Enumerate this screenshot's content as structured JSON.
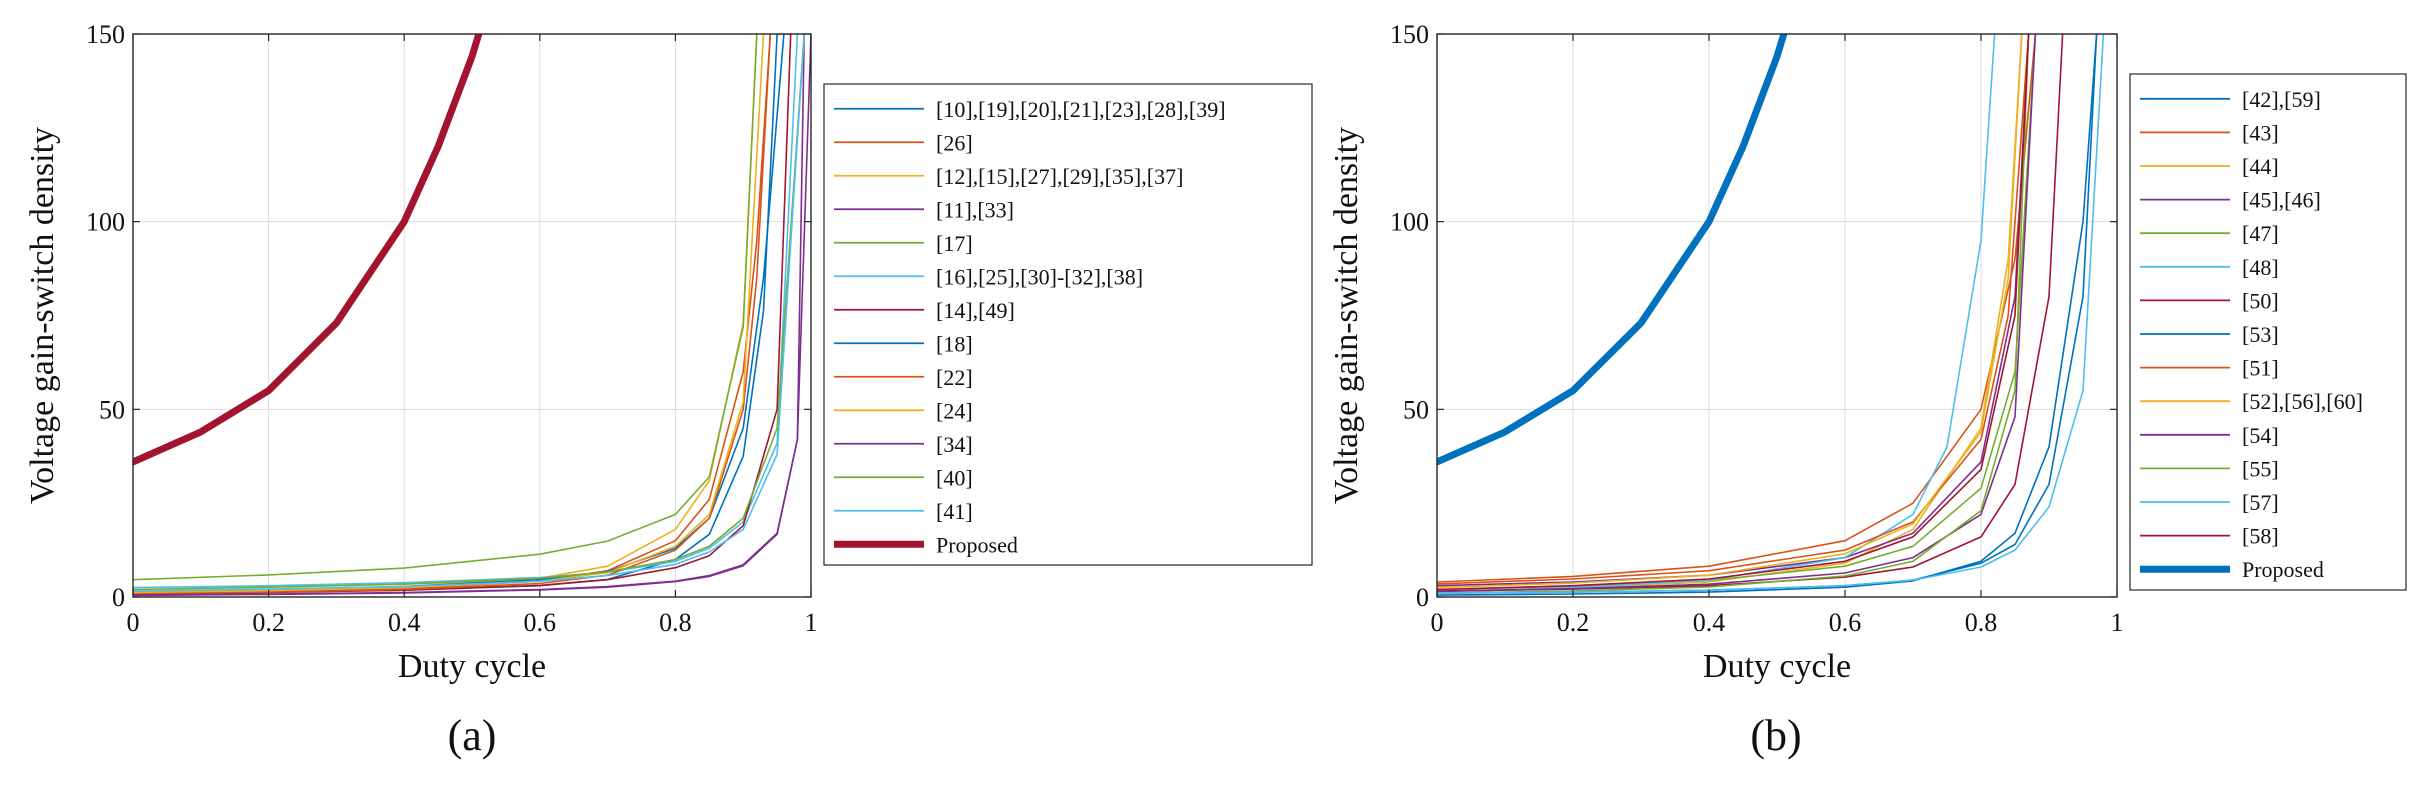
{
  "figure": {
    "panels": [
      {
        "id": "a",
        "caption": "(a)"
      },
      {
        "id": "b",
        "caption": "(b)"
      }
    ]
  },
  "chart_data": [
    {
      "type": "line",
      "caption": "(a)",
      "xlabel": "Duty cycle",
      "ylabel": "Voltage gain-switch density",
      "xlim": [
        0,
        1
      ],
      "ylim": [
        0,
        150
      ],
      "xticks": [
        "0",
        "0.2",
        "0.4",
        "0.6",
        "0.8",
        "1"
      ],
      "yticks": [
        "0",
        "50",
        "100",
        "150"
      ],
      "grid": true,
      "legend_position": "right-outside",
      "series": [
        {
          "name": "[10],[19],[20],[21],[23],[28],[39]",
          "color": "#0072bd",
          "x": [
            0,
            0.2,
            0.4,
            0.6,
            0.7,
            0.8,
            0.85,
            0.9,
            0.93,
            0.95,
            0.97
          ],
          "y": [
            1.1,
            1.4,
            1.8,
            3.0,
            4.7,
            10.0,
            16.7,
            37.5,
            76.2,
            150.0,
            150.0
          ]
        },
        {
          "name": "[26]",
          "color": "#d95319",
          "x": [
            0,
            0.2,
            0.4,
            0.6,
            0.7,
            0.8,
            0.85,
            0.9,
            0.92,
            0.94
          ],
          "y": [
            1.0,
            1.5,
            2.3,
            4.2,
            7.0,
            15.0,
            26.0,
            60.0,
            95.0,
            150.0
          ]
        },
        {
          "name": "[12],[15],[27],[29],[35],[37]",
          "color": "#edb120",
          "x": [
            0,
            0.2,
            0.4,
            0.6,
            0.7,
            0.8,
            0.85,
            0.9,
            0.92
          ],
          "y": [
            1.2,
            1.8,
            2.8,
            5.0,
            8.2,
            18.0,
            31.0,
            73.0,
            150.0
          ]
        },
        {
          "name": "[11],[33]",
          "color": "#7e2f8e",
          "x": [
            0,
            0.2,
            0.4,
            0.6,
            0.7,
            0.8,
            0.85,
            0.9,
            0.95,
            0.98,
            0.99
          ],
          "y": [
            0.4,
            0.7,
            1.1,
            1.9,
            2.6,
            4.1,
            5.5,
            8.3,
            16.7,
            42.0,
            150.0
          ]
        },
        {
          "name": "[17]",
          "color": "#77ac30",
          "x": [
            0,
            0.2,
            0.4,
            0.6,
            0.7,
            0.8,
            0.85,
            0.9,
            0.92
          ],
          "y": [
            4.6,
            5.9,
            7.7,
            11.4,
            14.9,
            22.0,
            32.0,
            72.0,
            150.0
          ]
        },
        {
          "name": "[16],[25],[30]-[32],[38]",
          "color": "#4dbeee",
          "x": [
            0,
            0.2,
            0.4,
            0.6,
            0.7,
            0.8,
            0.85,
            0.9,
            0.95,
            0.98
          ],
          "y": [
            2.5,
            3.0,
            3.8,
            5.2,
            6.6,
            9.5,
            13.0,
            20.0,
            41.0,
            150.0
          ]
        },
        {
          "name": "[14],[49]",
          "color": "#a2142f",
          "x": [
            0,
            0.2,
            0.4,
            0.6,
            0.7,
            0.8,
            0.85,
            0.9,
            0.95,
            0.97
          ],
          "y": [
            0.8,
            1.2,
            1.8,
            3.1,
            4.6,
            7.8,
            11.0,
            19.0,
            50.0,
            150.0
          ]
        },
        {
          "name": "[18]",
          "color": "#0072bd",
          "x": [
            0,
            0.2,
            0.4,
            0.6,
            0.7,
            0.8,
            0.85,
            0.9,
            0.93,
            0.96
          ],
          "y": [
            1.5,
            2.0,
            2.8,
            4.6,
            6.8,
            13.0,
            21.0,
            45.0,
            85.0,
            150.0
          ]
        },
        {
          "name": "[22]",
          "color": "#d95319",
          "x": [
            0,
            0.2,
            0.4,
            0.6,
            0.7,
            0.8,
            0.85,
            0.9,
            0.92,
            0.94
          ],
          "y": [
            0.9,
            1.3,
            2.0,
            3.6,
            5.8,
            12.5,
            21.0,
            50.0,
            85.0,
            150.0
          ]
        },
        {
          "name": "[24]",
          "color": "#edb120",
          "x": [
            0,
            0.2,
            0.4,
            0.6,
            0.7,
            0.8,
            0.85,
            0.9,
            0.93
          ],
          "y": [
            1.2,
            1.7,
            2.5,
            4.2,
            6.5,
            13.5,
            22.0,
            52.0,
            150.0
          ]
        },
        {
          "name": "[34]",
          "color": "#7e2f8e",
          "x": [
            0,
            0.2,
            0.4,
            0.6,
            0.7,
            0.8,
            0.85,
            0.9,
            0.95,
            0.98,
            1.0
          ],
          "y": [
            0.5,
            0.8,
            1.2,
            2.0,
            2.8,
            4.2,
            5.7,
            8.6,
            17.0,
            42.0,
            150.0
          ]
        },
        {
          "name": "[40]",
          "color": "#77ac30",
          "x": [
            0,
            0.2,
            0.4,
            0.6,
            0.7,
            0.8,
            0.85,
            0.9,
            0.95,
            0.99
          ],
          "y": [
            2.0,
            2.6,
            3.4,
            5.0,
            6.7,
            10.0,
            13.5,
            21.0,
            45.0,
            150.0
          ]
        },
        {
          "name": "[41]",
          "color": "#4dbeee",
          "x": [
            0,
            0.2,
            0.4,
            0.6,
            0.7,
            0.8,
            0.85,
            0.9,
            0.95,
            0.99
          ],
          "y": [
            1.6,
            2.1,
            2.8,
            4.2,
            5.7,
            8.7,
            12.0,
            18.0,
            38.0,
            150.0
          ]
        },
        {
          "name": "Proposed",
          "color": "#a2142f",
          "thick": true,
          "x": [
            0,
            0.1,
            0.2,
            0.3,
            0.4,
            0.45,
            0.5,
            0.51
          ],
          "y": [
            36.0,
            44.0,
            55.0,
            73.0,
            100.0,
            120.0,
            144.0,
            150.0
          ]
        }
      ]
    },
    {
      "type": "line",
      "caption": "(b)",
      "xlabel": "Duty cycle",
      "ylabel": "Voltage gain-switch density",
      "xlim": [
        0,
        1
      ],
      "ylim": [
        0,
        150
      ],
      "xticks": [
        "0",
        "0.2",
        "0.4",
        "0.6",
        "0.8",
        "1"
      ],
      "yticks": [
        "0",
        "50",
        "100",
        "150"
      ],
      "grid": true,
      "legend_position": "right-outside",
      "series": [
        {
          "name": "[42],[59]",
          "color": "#0072bd",
          "x": [
            0,
            0.2,
            0.4,
            0.6,
            0.7,
            0.8,
            0.85,
            0.9,
            0.95,
            0.97
          ],
          "y": [
            1.0,
            1.3,
            1.8,
            3.0,
            4.5,
            9.0,
            14.0,
            30.0,
            80.0,
            150.0
          ]
        },
        {
          "name": "[43]",
          "color": "#d95319",
          "x": [
            0,
            0.2,
            0.4,
            0.6,
            0.7,
            0.8,
            0.85,
            0.88
          ],
          "y": [
            4.0,
            5.5,
            8.2,
            15.0,
            25.0,
            50.0,
            90.0,
            150.0
          ]
        },
        {
          "name": "[44]",
          "color": "#edb120",
          "x": [
            0,
            0.2,
            0.4,
            0.6,
            0.7,
            0.8,
            0.84,
            0.86
          ],
          "y": [
            1.5,
            2.4,
            4.0,
            9.0,
            18.0,
            45.0,
            90.0,
            150.0
          ]
        },
        {
          "name": "[45],[46]",
          "color": "#7e2f8e",
          "x": [
            0,
            0.2,
            0.4,
            0.6,
            0.7,
            0.8,
            0.85,
            0.87
          ],
          "y": [
            3.0,
            4.0,
            5.8,
            10.5,
            17.0,
            36.0,
            80.0,
            150.0
          ]
        },
        {
          "name": "[47]",
          "color": "#77ac30",
          "x": [
            0,
            0.2,
            0.4,
            0.6,
            0.7,
            0.8,
            0.85,
            0.88
          ],
          "y": [
            2.0,
            2.9,
            4.4,
            8.2,
            13.5,
            29.0,
            60.0,
            150.0
          ]
        },
        {
          "name": "[48]",
          "color": "#4dbeee",
          "x": [
            0,
            0.2,
            0.4,
            0.6,
            0.7,
            0.75,
            0.8,
            0.82
          ],
          "y": [
            1.5,
            2.5,
            4.5,
            10.5,
            22.0,
            40.0,
            95.0,
            150.0
          ]
        },
        {
          "name": "[50]",
          "color": "#a2142f",
          "x": [
            0,
            0.2,
            0.4,
            0.6,
            0.7,
            0.8,
            0.85,
            0.9,
            0.92
          ],
          "y": [
            1.6,
            2.1,
            3.0,
            5.3,
            8.0,
            16.0,
            30.0,
            80.0,
            150.0
          ]
        },
        {
          "name": "[53]",
          "color": "#0072bd",
          "x": [
            0,
            0.2,
            0.4,
            0.6,
            0.7,
            0.8,
            0.85,
            0.9,
            0.95,
            0.97
          ],
          "y": [
            0.5,
            0.8,
            1.3,
            2.6,
            4.3,
            9.5,
            17.0,
            40.0,
            100.0,
            150.0
          ]
        },
        {
          "name": "[51]",
          "color": "#d95319",
          "x": [
            0,
            0.2,
            0.4,
            0.6,
            0.7,
            0.8,
            0.84,
            0.87
          ],
          "y": [
            3.5,
            4.8,
            7.0,
            12.5,
            20.0,
            42.0,
            75.0,
            150.0
          ]
        },
        {
          "name": "[52],[56],[60]",
          "color": "#edb120",
          "x": [
            0,
            0.2,
            0.4,
            0.6,
            0.7,
            0.8,
            0.84,
            0.86
          ],
          "y": [
            2.5,
            3.7,
            5.8,
            11.5,
            19.5,
            44.0,
            85.0,
            150.0
          ]
        },
        {
          "name": "[54]",
          "color": "#7e2f8e",
          "x": [
            0,
            0.2,
            0.4,
            0.6,
            0.7,
            0.8,
            0.85,
            0.88
          ],
          "y": [
            1.5,
            2.2,
            3.4,
            6.4,
            10.5,
            22.0,
            48.0,
            150.0
          ]
        },
        {
          "name": "[55]",
          "color": "#77ac30",
          "x": [
            0,
            0.2,
            0.4,
            0.6,
            0.7,
            0.8,
            0.85,
            0.87
          ],
          "y": [
            1.0,
            1.6,
            2.7,
            5.6,
            9.5,
            23.0,
            55.0,
            150.0
          ]
        },
        {
          "name": "[57]",
          "color": "#4dbeee",
          "x": [
            0,
            0.2,
            0.4,
            0.6,
            0.7,
            0.8,
            0.85,
            0.9,
            0.95,
            0.98
          ],
          "y": [
            1.0,
            1.3,
            1.8,
            3.0,
            4.5,
            8.0,
            12.5,
            24.0,
            55.0,
            150.0
          ]
        },
        {
          "name": "[58]",
          "color": "#a2142f",
          "x": [
            0,
            0.2,
            0.4,
            0.6,
            0.7,
            0.8,
            0.85,
            0.87
          ],
          "y": [
            2.0,
            3.0,
            4.8,
            9.5,
            16.0,
            34.0,
            75.0,
            150.0
          ]
        },
        {
          "name": "Proposed",
          "color": "#0072bd",
          "thick": true,
          "x": [
            0,
            0.1,
            0.2,
            0.3,
            0.4,
            0.45,
            0.5,
            0.51
          ],
          "y": [
            36.0,
            44.0,
            55.0,
            73.0,
            100.0,
            120.0,
            144.0,
            150.0
          ]
        }
      ]
    }
  ]
}
